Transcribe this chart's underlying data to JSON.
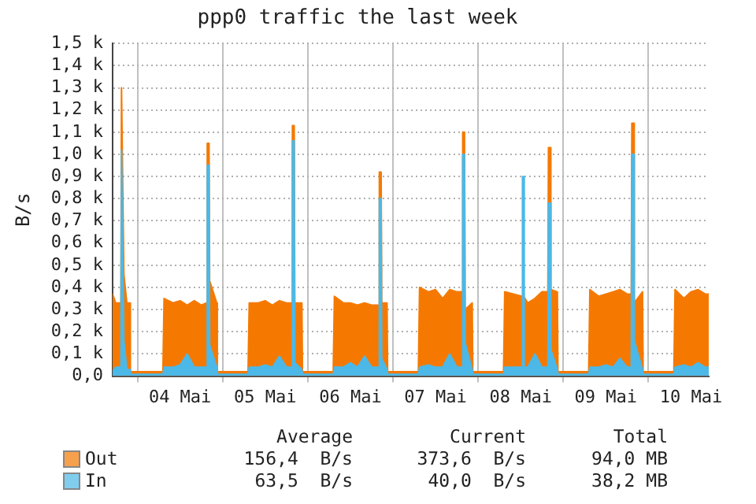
{
  "chart_data": {
    "type": "area",
    "title": "ppp0 traffic the last week",
    "ylabel": "B/s",
    "x": [
      "--05-03T17:00",
      "--05-03T17:50",
      "--05-03T19:20",
      "--05-03T19:30",
      "--05-03T19:50",
      "--05-03T20:10",
      "--05-03T21:00",
      "--05-03T21:50",
      "--05-03T22:00",
      "--05-04T00:00",
      "--05-04T07:10",
      "--05-04T07:30",
      "--05-04T10:00",
      "--05-04T12:00",
      "--05-04T14:00",
      "--05-04T16:00",
      "--05-04T18:00",
      "--05-04T19:30",
      "--05-04T19:40",
      "--05-04T20:10",
      "--05-04T20:20",
      "--05-04T22:20",
      "--05-04T22:30",
      "--05-05T00:00",
      "--05-05T07:10",
      "--05-05T07:30",
      "--05-05T10:00",
      "--05-05T12:00",
      "--05-05T14:00",
      "--05-05T16:00",
      "--05-05T18:00",
      "--05-05T19:30",
      "--05-05T19:40",
      "--05-05T20:10",
      "--05-05T20:20",
      "--05-05T22:20",
      "--05-05T22:30",
      "--05-06T00:00",
      "--05-06T07:10",
      "--05-06T07:30",
      "--05-06T10:00",
      "--05-06T12:00",
      "--05-06T14:00",
      "--05-06T16:00",
      "--05-06T18:00",
      "--05-06T20:00",
      "--05-06T20:10",
      "--05-06T20:40",
      "--05-06T20:50",
      "--05-06T22:20",
      "--05-06T22:30",
      "--05-07T00:00",
      "--05-07T07:10",
      "--05-07T07:30",
      "--05-07T10:00",
      "--05-07T12:00",
      "--05-07T14:00",
      "--05-07T16:00",
      "--05-07T18:00",
      "--05-07T19:30",
      "--05-07T19:40",
      "--05-07T20:10",
      "--05-07T20:20",
      "--05-07T22:20",
      "--05-07T22:30",
      "--05-08T00:00",
      "--05-08T07:10",
      "--05-08T07:30",
      "--05-08T10:00",
      "--05-08T12:20",
      "--05-08T12:30",
      "--05-08T12:50",
      "--05-08T13:00",
      "--05-08T14:00",
      "--05-08T16:00",
      "--05-08T18:00",
      "--05-08T19:40",
      "--05-08T19:50",
      "--05-08T20:20",
      "--05-08T20:30",
      "--05-08T22:20",
      "--05-08T22:30",
      "--05-09T00:00",
      "--05-09T07:10",
      "--05-09T07:30",
      "--05-09T10:00",
      "--05-09T12:00",
      "--05-09T14:00",
      "--05-09T16:00",
      "--05-09T18:00",
      "--05-09T19:10",
      "--05-09T19:20",
      "--05-09T19:50",
      "--05-09T20:00",
      "--05-09T22:20",
      "--05-09T22:30",
      "--05-10T00:00",
      "--05-10T07:10",
      "--05-10T07:30",
      "--05-10T10:00",
      "--05-10T12:00",
      "--05-10T14:00",
      "--05-10T16:00",
      "--05-10T17:00"
    ],
    "series": [
      {
        "name": "Out",
        "color": "#f57900",
        "values": [
          370,
          330,
          330,
          1300,
          1300,
          460,
          330,
          330,
          20,
          20,
          20,
          350,
          330,
          340,
          320,
          340,
          320,
          330,
          1050,
          1050,
          430,
          330,
          20,
          20,
          20,
          330,
          330,
          340,
          320,
          340,
          330,
          330,
          1130,
          1130,
          330,
          330,
          20,
          20,
          20,
          360,
          330,
          330,
          320,
          330,
          320,
          320,
          920,
          920,
          330,
          330,
          20,
          20,
          20,
          400,
          380,
          390,
          350,
          390,
          380,
          380,
          1100,
          1100,
          300,
          330,
          20,
          20,
          20,
          380,
          370,
          360,
          360,
          360,
          360,
          330,
          350,
          380,
          380,
          1030,
          1030,
          390,
          380,
          20,
          20,
          20,
          390,
          360,
          370,
          380,
          390,
          370,
          370,
          1140,
          1140,
          330,
          380,
          20,
          20,
          20,
          390,
          350,
          380,
          390,
          370,
          370
        ]
      },
      {
        "name": "In",
        "color": "#4cb8e8",
        "values": [
          20,
          40,
          40,
          1020,
          1020,
          160,
          30,
          30,
          8,
          8,
          8,
          40,
          40,
          50,
          100,
          40,
          40,
          40,
          950,
          950,
          140,
          40,
          8,
          8,
          8,
          40,
          40,
          50,
          40,
          90,
          40,
          40,
          1060,
          1060,
          60,
          30,
          8,
          8,
          8,
          40,
          40,
          60,
          40,
          90,
          40,
          40,
          800,
          800,
          80,
          30,
          8,
          8,
          8,
          40,
          50,
          40,
          40,
          100,
          40,
          40,
          1000,
          1000,
          150,
          30,
          8,
          8,
          8,
          40,
          40,
          40,
          900,
          900,
          40,
          40,
          100,
          40,
          40,
          780,
          780,
          120,
          30,
          8,
          8,
          8,
          40,
          40,
          50,
          40,
          80,
          40,
          40,
          1000,
          1000,
          160,
          30,
          8,
          8,
          8,
          40,
          50,
          40,
          60,
          40,
          40
        ]
      }
    ],
    "xlim": [
      "--05-03T17:00",
      "--05-10T17:00"
    ],
    "xticks": [
      {
        "value": "--05-04T00:00",
        "label": null
      },
      {
        "value": "--05-04T12:00",
        "label": "04 Mai"
      },
      {
        "value": "--05-05T00:00",
        "label": null
      },
      {
        "value": "--05-05T12:00",
        "label": "05 Mai"
      },
      {
        "value": "--05-06T00:00",
        "label": null
      },
      {
        "value": "--05-06T12:00",
        "label": "06 Mai"
      },
      {
        "value": "--05-07T00:00",
        "label": null
      },
      {
        "value": "--05-07T12:00",
        "label": "07 Mai"
      },
      {
        "value": "--05-08T00:00",
        "label": null
      },
      {
        "value": "--05-08T12:00",
        "label": "08 Mai"
      },
      {
        "value": "--05-09T00:00",
        "label": null
      },
      {
        "value": "--05-09T12:00",
        "label": "09 Mai"
      },
      {
        "value": "--05-10T00:00",
        "label": null
      },
      {
        "value": "--05-10T12:00",
        "label": "10 Mai"
      }
    ],
    "ylim": [
      0,
      1500
    ],
    "yticks": [
      {
        "value": 0,
        "label": "0,0"
      },
      {
        "value": 100,
        "label": "0,1 k"
      },
      {
        "value": 200,
        "label": "0,2 k"
      },
      {
        "value": 300,
        "label": "0,3 k"
      },
      {
        "value": 400,
        "label": "0,4 k"
      },
      {
        "value": 500,
        "label": "0,5 k"
      },
      {
        "value": 600,
        "label": "0,6 k"
      },
      {
        "value": 700,
        "label": "0,7 k"
      },
      {
        "value": 800,
        "label": "0,8 k"
      },
      {
        "value": 900,
        "label": "0,9 k"
      },
      {
        "value": 1000,
        "label": "1,0 k"
      },
      {
        "value": 1100,
        "label": "1,1 k"
      },
      {
        "value": 1200,
        "label": "1,2 k"
      },
      {
        "value": 1300,
        "label": "1,3 k"
      },
      {
        "value": 1400,
        "label": "1,4 k"
      },
      {
        "value": 1500,
        "label": "1,5 k"
      }
    ],
    "grid": true,
    "legend": "bottom",
    "marker": "none",
    "annotations": [
      "Average",
      "Current",
      "Total",
      "156,4  B/s",
      "373,6  B/s",
      "94,0 MB",
      "63,5  B/s",
      "40,0  B/s",
      "38,2 MB"
    ]
  }
}
